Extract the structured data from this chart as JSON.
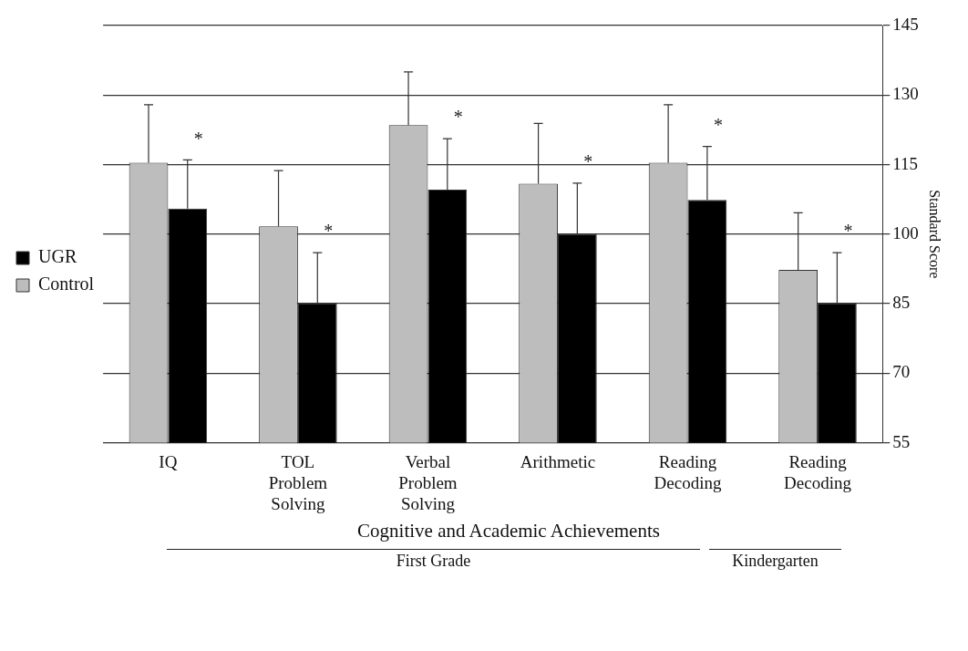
{
  "chart_data": {
    "type": "bar",
    "categories": [
      "IQ",
      "TOL Problem Solving",
      "Verbal Problem Solving",
      "Arithmetic",
      "Reading Decoding",
      "Reading Decoding"
    ],
    "series": [
      {
        "name": "Control",
        "color": "#bdbdbd",
        "values": [
          115.4,
          101.7,
          123.5,
          110.9,
          115.4,
          92.3
        ],
        "errors": [
          12.5,
          12,
          11.5,
          13,
          12.5,
          12.3
        ]
      },
      {
        "name": "UGR",
        "color": "#000000",
        "values": [
          105.5,
          85,
          109.6,
          100,
          107.4,
          85
        ],
        "errors": [
          10.5,
          11,
          11,
          11,
          11.5,
          11
        ]
      }
    ],
    "ylim": [
      55,
      145
    ],
    "yticks": [
      55,
      70,
      85,
      100,
      115,
      130,
      145
    ],
    "ylabel": "Standard Score",
    "xlabel": "Cognitive and Academic Achievements",
    "grid": "y",
    "legend": "left",
    "annotations": [
      "*",
      "*",
      "*",
      "*",
      "*",
      "*",
      "First Grade",
      "Kindergarten"
    ]
  }
}
